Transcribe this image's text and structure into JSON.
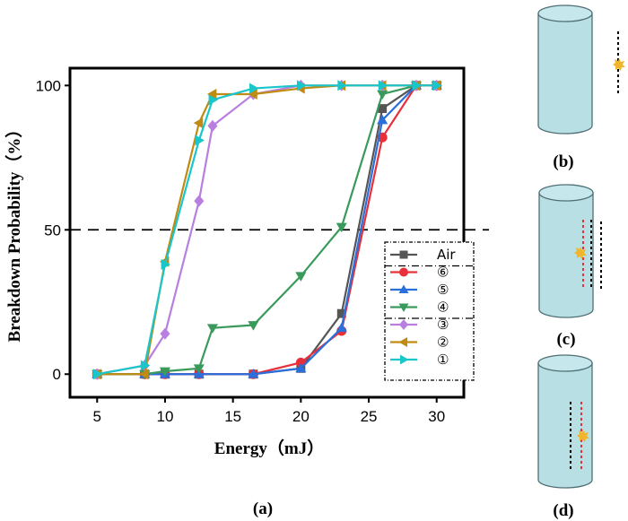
{
  "chart_data": {
    "type": "line",
    "xlabel": "Energy（mJ）",
    "ylabel": "Breakdown Probability（%）",
    "xlim": [
      3.0,
      32.0
    ],
    "ylim": [
      -8,
      106
    ],
    "xticks": [
      "5",
      "10",
      "15",
      "20",
      "25",
      "30"
    ],
    "yticks": [
      "0",
      "50",
      "100"
    ],
    "reference_line": {
      "y": 50,
      "style": "dashed"
    },
    "legend_position": "bottom-right",
    "series": [
      {
        "name": "Air",
        "color": "#555555",
        "marker": "square",
        "x": [
          5,
          8.5,
          10,
          12.5,
          16.5,
          20,
          23,
          26,
          28.5,
          30
        ],
        "y": [
          0,
          0,
          0,
          0,
          0,
          2,
          21,
          92,
          100,
          100
        ]
      },
      {
        "name": "⑥",
        "color": "#e8303a",
        "marker": "circle",
        "x": [
          5,
          8.5,
          10,
          12.5,
          16.5,
          20,
          23,
          26,
          28.5,
          30
        ],
        "y": [
          0,
          0,
          0,
          0,
          0,
          4,
          15,
          82,
          100,
          100
        ]
      },
      {
        "name": "⑤",
        "color": "#2a6fdc",
        "marker": "triangle-up",
        "x": [
          5,
          8.5,
          10,
          12.5,
          16.5,
          20,
          23,
          26,
          28.5,
          30
        ],
        "y": [
          0,
          0,
          0,
          0,
          0,
          2,
          16,
          88,
          100,
          100
        ]
      },
      {
        "name": "④",
        "color": "#3a9a5c",
        "marker": "triangle-down",
        "x": [
          5,
          8.5,
          10,
          12.5,
          13.5,
          16.5,
          20,
          23,
          26,
          28.5,
          30
        ],
        "y": [
          0,
          0,
          1,
          2,
          16,
          17,
          34,
          51,
          97,
          100,
          100
        ]
      },
      {
        "name": "③",
        "color": "#b97fe0",
        "marker": "diamond",
        "x": [
          5,
          8.5,
          10,
          12.5,
          13.5,
          16.5,
          20,
          23,
          26,
          28.5,
          30
        ],
        "y": [
          0,
          3,
          14,
          60,
          86,
          97,
          100,
          100,
          100,
          100,
          100
        ]
      },
      {
        "name": "②",
        "color": "#c08b12",
        "marker": "triangle-left",
        "x": [
          5,
          8.5,
          10,
          12.5,
          13.5,
          16.5,
          20,
          23,
          26,
          28.5,
          30
        ],
        "y": [
          0,
          0,
          39,
          87,
          97,
          97,
          99,
          100,
          100,
          100,
          100
        ]
      },
      {
        "name": "①",
        "color": "#19c6c9",
        "marker": "triangle-right",
        "x": [
          5,
          8.5,
          10,
          12.5,
          13.5,
          16.5,
          20,
          23,
          26,
          28.5,
          30
        ],
        "y": [
          0,
          3,
          38,
          81,
          95,
          99,
          100,
          100,
          100,
          100,
          100
        ]
      }
    ]
  },
  "panels": {
    "a": "(a)",
    "b": "(b)",
    "c": "(c)",
    "d": "(d)"
  },
  "colors": {
    "cylinder_fill": "#b7dfe4",
    "cylinder_stroke": "#4f6f74",
    "spark": "#f0b52a",
    "red_dash": "#e8303a"
  }
}
